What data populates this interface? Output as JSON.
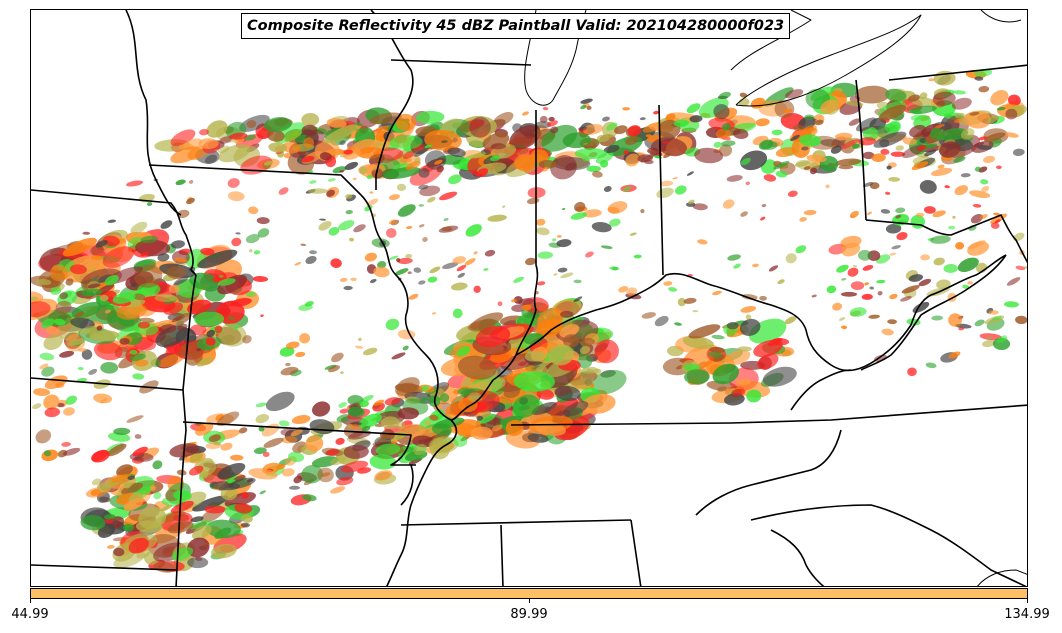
{
  "title": "Composite Reflectivity 45 dBZ Paintball Valid: 202104280000f023",
  "colorbar": {
    "color": "#ffbf66",
    "ticks": [
      "44.99",
      "89.99",
      "134.99"
    ]
  },
  "member_colors": [
    "#ff1f1f",
    "#ff7f0e",
    "#2ca02c",
    "#36e836",
    "#b5b34a",
    "#8c2d2d",
    "#444444",
    "#ff9b3d",
    "#a05a28"
  ],
  "chart_data": {
    "type": "map",
    "title": "Composite Reflectivity 45 dBZ Paintball Valid: 202104280000f023",
    "colorbar_ticks": [
      44.99,
      89.99,
      134.99
    ]
  }
}
